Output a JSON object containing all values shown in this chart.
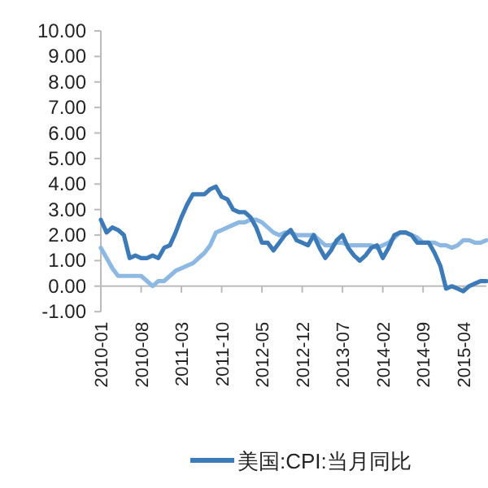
{
  "chart_data": {
    "type": "line",
    "categories": [
      "2010-01",
      null,
      null,
      null,
      null,
      null,
      null,
      "2010-08",
      null,
      null,
      null,
      null,
      null,
      null,
      "2011-03",
      null,
      null,
      null,
      null,
      null,
      null,
      "2011-10",
      null,
      null,
      null,
      null,
      null,
      null,
      "2012-05",
      null,
      null,
      null,
      null,
      null,
      null,
      "2012-12",
      null,
      null,
      null,
      null,
      null,
      null,
      "2013-07",
      null,
      null,
      null,
      null,
      null,
      null,
      "2014-02",
      null,
      null,
      null,
      null,
      null,
      null,
      "2014-09",
      null,
      null,
      null,
      null,
      null,
      null,
      "2015-04",
      null,
      null,
      null,
      null
    ],
    "series": [
      {
        "name": "美国:CPI:当月同比",
        "color": "#3d7ab8",
        "values": [
          2.6,
          2.1,
          2.3,
          2.2,
          2.0,
          1.1,
          1.2,
          1.1,
          1.1,
          1.2,
          1.1,
          1.5,
          1.6,
          2.1,
          2.7,
          3.2,
          3.6,
          3.6,
          3.6,
          3.8,
          3.9,
          3.5,
          3.4,
          3.0,
          2.9,
          2.9,
          2.7,
          2.3,
          1.7,
          1.7,
          1.4,
          1.7,
          2.0,
          2.2,
          1.8,
          1.7,
          1.6,
          2.0,
          1.5,
          1.1,
          1.4,
          1.8,
          2.0,
          1.5,
          1.2,
          1.0,
          1.2,
          1.5,
          1.6,
          1.1,
          1.5,
          2.0,
          2.1,
          2.1,
          2.0,
          1.7,
          1.7,
          1.7,
          1.3,
          0.8,
          -0.1,
          0.0,
          -0.1,
          -0.2,
          0.0,
          0.1,
          0.2,
          0.2
        ]
      },
      {
        "color": "#8db8e2",
        "values": [
          1.5,
          1.1,
          0.7,
          0.4,
          0.4,
          0.4,
          0.4,
          0.4,
          0.2,
          0.0,
          0.2,
          0.2,
          0.4,
          0.6,
          0.7,
          0.8,
          0.9,
          1.1,
          1.3,
          1.6,
          2.1,
          2.2,
          2.3,
          2.4,
          2.5,
          2.5,
          2.6,
          2.6,
          2.5,
          2.3,
          2.1,
          2.0,
          2.1,
          2.1,
          2.0,
          2.0,
          2.0,
          2.0,
          1.8,
          1.6,
          1.6,
          1.7,
          1.7,
          1.6,
          1.6,
          1.6,
          1.6,
          1.6,
          1.5,
          1.6,
          1.7,
          1.9,
          2.1,
          2.1,
          2.0,
          1.9,
          1.7,
          1.7,
          1.7,
          1.6,
          1.6,
          1.5,
          1.6,
          1.8,
          1.8,
          1.7,
          1.7,
          1.8
        ]
      }
    ],
    "ylim": [
      -1,
      10
    ],
    "yticks": [
      {
        "value": -1,
        "label": "-1.00"
      },
      {
        "value": 0,
        "label": "0.00"
      },
      {
        "value": 1,
        "label": "1.00"
      },
      {
        "value": 2,
        "label": "2.00"
      },
      {
        "value": 3,
        "label": "3.00"
      },
      {
        "value": 4,
        "label": "4.00"
      },
      {
        "value": 5,
        "label": "5.00"
      },
      {
        "value": 6,
        "label": "6.00"
      },
      {
        "value": 7,
        "label": "7.00"
      },
      {
        "value": 8,
        "label": "8.00"
      },
      {
        "value": 9,
        "label": "9.00"
      },
      {
        "value": 10,
        "label": "10.00"
      }
    ],
    "legend": "bottom",
    "grid": false
  }
}
